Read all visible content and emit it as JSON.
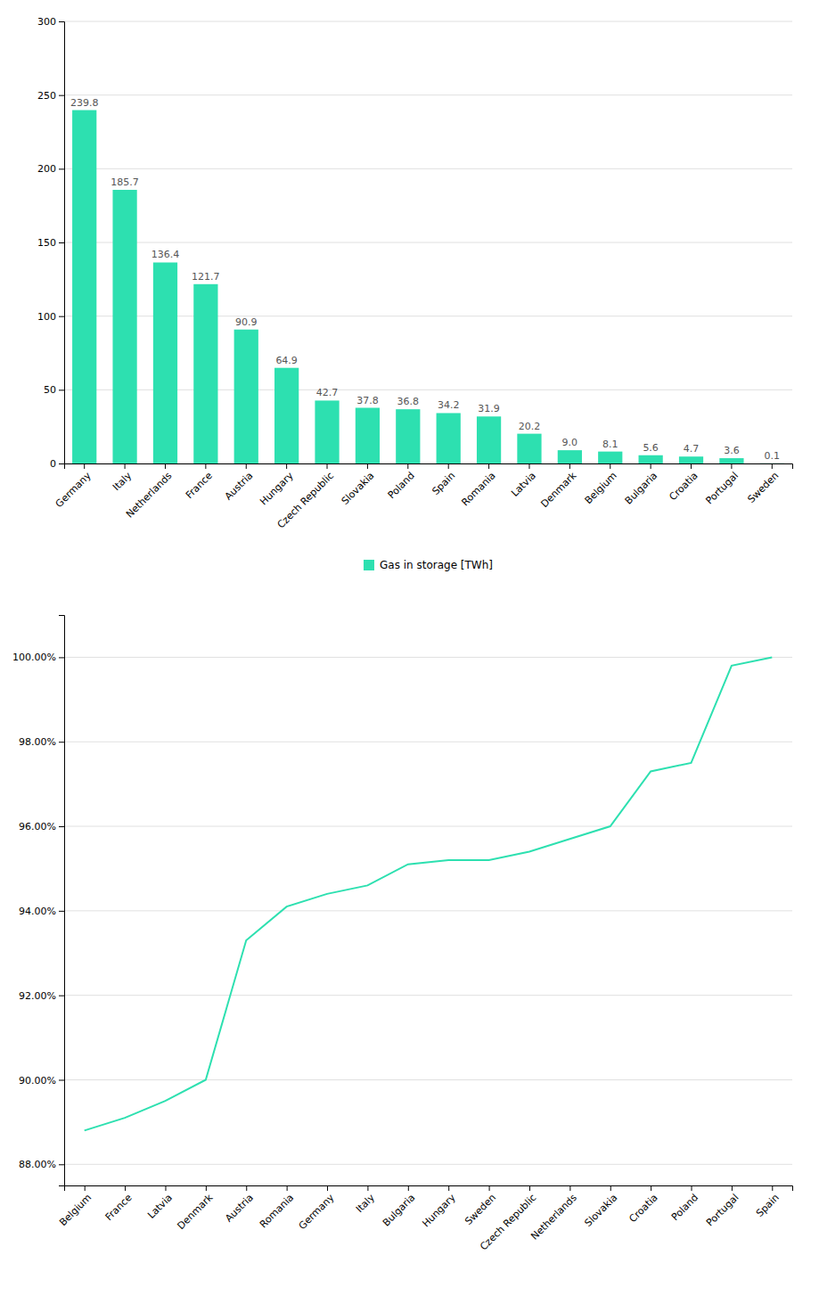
{
  "chart_data": [
    {
      "type": "bar",
      "categories": [
        "Germany",
        "Italy",
        "Netherlands",
        "France",
        "Austria",
        "Hungary",
        "Czech Republic",
        "Slovakia",
        "Poland",
        "Spain",
        "Romania",
        "Latvia",
        "Denmark",
        "Belgium",
        "Bulgaria",
        "Croatia",
        "Portugal",
        "Sweden"
      ],
      "series": [
        {
          "name": "Gas in storage [TWh]",
          "color": "#2de0b0",
          "values": [
            239.8,
            185.7,
            136.4,
            121.7,
            90.9,
            64.9,
            42.7,
            37.8,
            36.8,
            34.2,
            31.9,
            20.2,
            9.0,
            8.1,
            5.6,
            4.7,
            3.6,
            0.1
          ],
          "value_labels": [
            "239.8",
            "185.7",
            "136.4",
            "121.7",
            "90.9",
            "64.9",
            "42.7",
            "37.8",
            "36.8",
            "34.2",
            "31.9",
            "20.2",
            "9.0",
            "8.1",
            "5.6",
            "4.7",
            "3.6",
            "0.1"
          ]
        }
      ],
      "ylim": [
        0,
        300
      ],
      "yticks": [
        0,
        50,
        100,
        150,
        200,
        250,
        300
      ],
      "grid": true,
      "data_labels": true,
      "legend": "bottom"
    },
    {
      "type": "line",
      "categories": [
        "Belgium",
        "France",
        "Latvia",
        "Denmark",
        "Austria",
        "Romania",
        "Germany",
        "Italy",
        "Bulgaria",
        "Hungary",
        "Sweden",
        "Czech Republic",
        "Netherlands",
        "Slovakia",
        "Croatia",
        "Poland",
        "Portugal",
        "Spain"
      ],
      "values": [
        88.8,
        89.1,
        89.5,
        90.0,
        93.3,
        94.1,
        94.4,
        94.6,
        95.1,
        95.2,
        95.2,
        95.4,
        95.7,
        96.0,
        97.3,
        97.5,
        99.8,
        100.0
      ],
      "color": "#2de0b0",
      "ylim": [
        87.5,
        101.0
      ],
      "yticks": [
        {
          "value": 88.0,
          "label": "88.00%"
        },
        {
          "value": 90.0,
          "label": "90.00%"
        },
        {
          "value": 92.0,
          "label": "92.00%"
        },
        {
          "value": 94.0,
          "label": "94.00%"
        },
        {
          "value": 96.0,
          "label": "96.00%"
        },
        {
          "value": 98.0,
          "label": "98.00%"
        },
        {
          "value": 100.0,
          "label": "100.00%"
        }
      ],
      "grid": true
    }
  ]
}
